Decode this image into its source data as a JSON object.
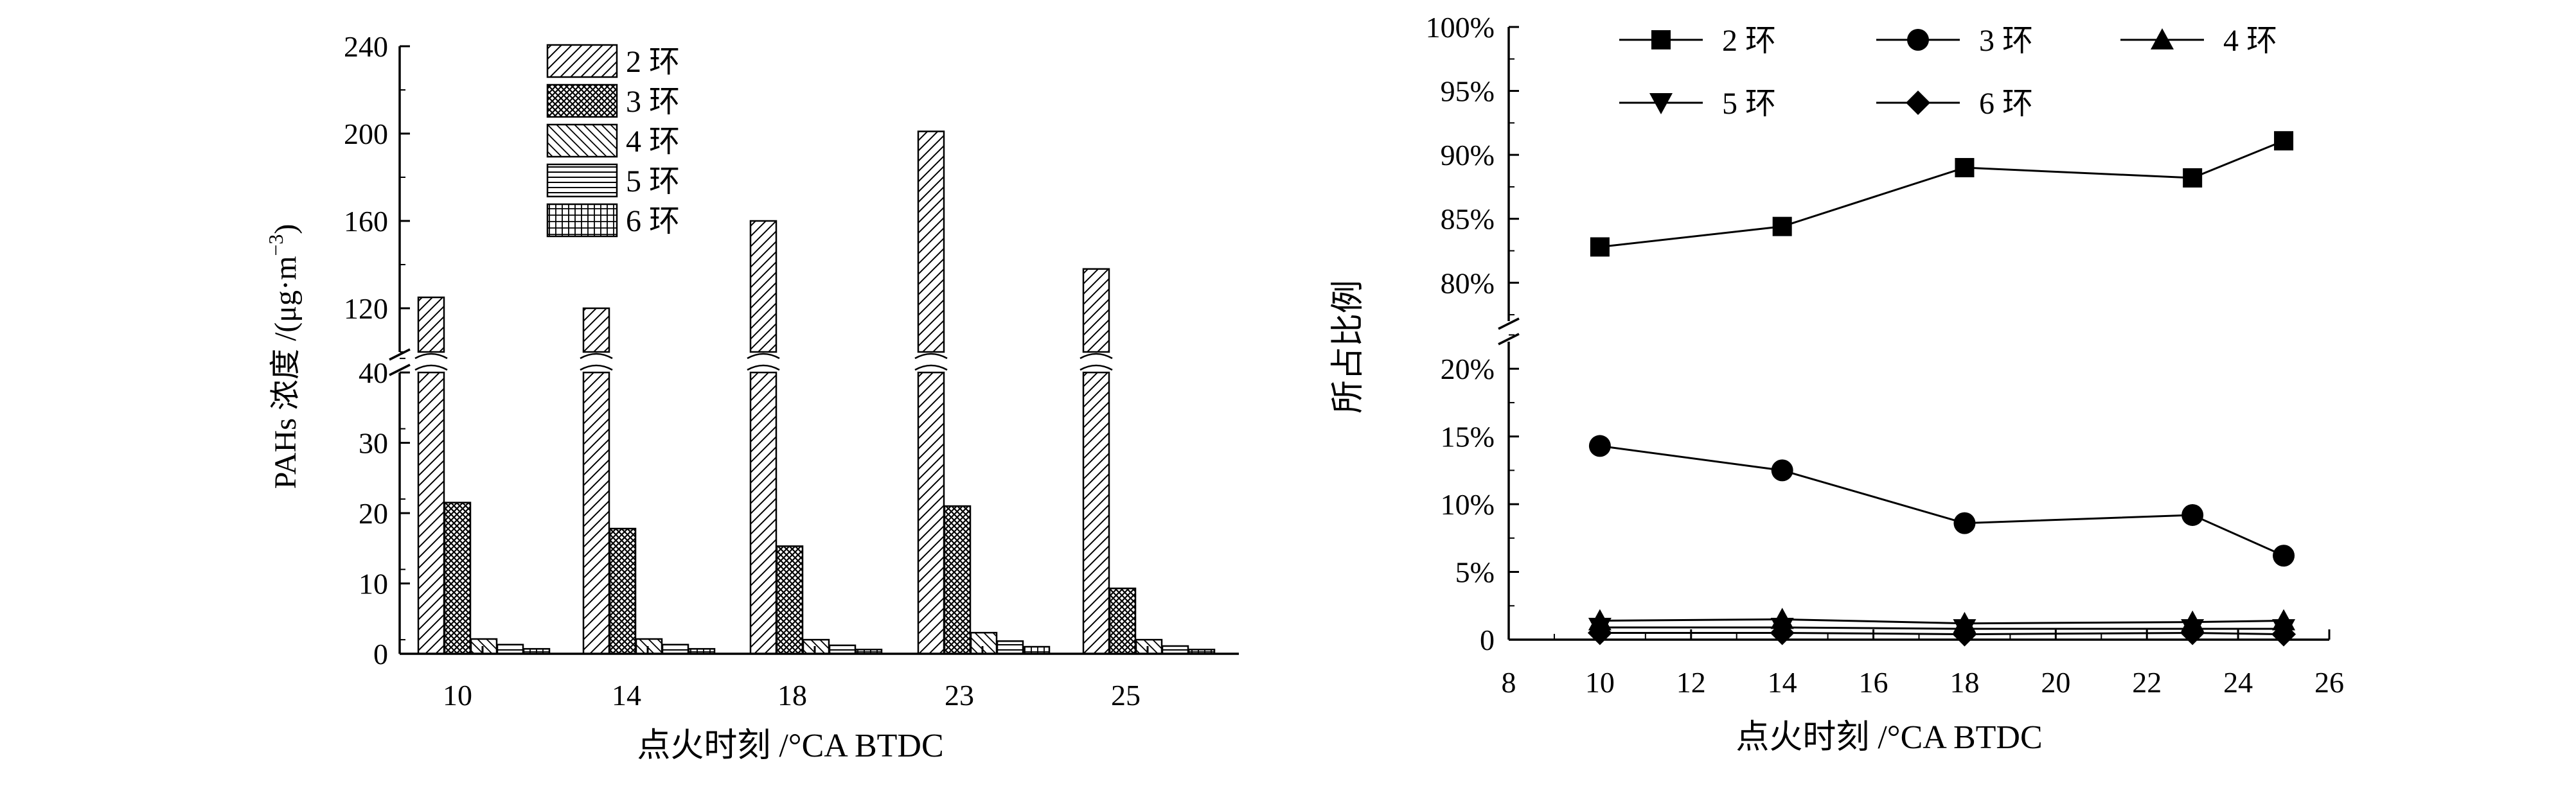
{
  "chart_data": [
    {
      "type": "bar",
      "categories": [
        "10",
        "14",
        "18",
        "23",
        "25"
      ],
      "series": [
        {
          "name": "2 环",
          "values": [
            125,
            120,
            160,
            201,
            138
          ]
        },
        {
          "name": "3 环",
          "values": [
            21.5,
            17.8,
            15.3,
            21,
            9.3
          ]
        },
        {
          "name": "4 环",
          "values": [
            2.1,
            2.1,
            2.0,
            3.0,
            2.0
          ]
        },
        {
          "name": "5 环",
          "values": [
            1.3,
            1.3,
            1.2,
            1.8,
            1.1
          ]
        },
        {
          "name": "6 环",
          "values": [
            0.7,
            0.7,
            0.6,
            1.0,
            0.6
          ]
        }
      ],
      "xlabel": "点火时刻 /°CA BTDC",
      "ylabel": "PAHs 浓度 /(μg·m",
      "ylabel_exponent": "−3",
      "ylabel_close": ")",
      "y_lower": {
        "range": [
          0,
          40
        ],
        "ticks": [
          "0",
          "10",
          "20",
          "30",
          "40"
        ]
      },
      "y_upper": {
        "range": [
          100,
          240
        ],
        "ticks": [
          "120",
          "160",
          "200",
          "240"
        ]
      },
      "broken_axis": true,
      "legend_position": "top-center",
      "patterns": [
        "diagonal",
        "crosshatch",
        "backslash",
        "horizontal",
        "grid"
      ]
    },
    {
      "type": "line",
      "x": [
        10,
        14,
        18,
        23,
        25
      ],
      "series": [
        {
          "name": "2 环",
          "marker": "square",
          "values": [
            0.828,
            0.844,
            0.89,
            0.882,
            0.911
          ]
        },
        {
          "name": "3 环",
          "marker": "circle",
          "values": [
            0.143,
            0.125,
            0.086,
            0.092,
            0.062
          ]
        },
        {
          "name": "4 环",
          "marker": "triangle-up",
          "values": [
            0.014,
            0.015,
            0.012,
            0.013,
            0.014
          ]
        },
        {
          "name": "5 环",
          "marker": "triangle-down",
          "values": [
            0.009,
            0.009,
            0.008,
            0.008,
            0.008
          ]
        },
        {
          "name": "6 环",
          "marker": "diamond",
          "values": [
            0.005,
            0.005,
            0.004,
            0.005,
            0.004
          ]
        }
      ],
      "xlabel": "点火时刻 /°CA BTDC",
      "ylabel": "所占比例",
      "xlim": [
        8,
        26
      ],
      "x_ticks": [
        "8",
        "10",
        "12",
        "14",
        "16",
        "18",
        "20",
        "22",
        "24",
        "26"
      ],
      "y_lower": {
        "range": [
          0,
          0.22
        ],
        "ticks": [
          "0",
          "5%",
          "10%",
          "15%",
          "20%"
        ]
      },
      "y_upper": {
        "range": [
          0.77,
          1.0
        ],
        "ticks": [
          "80%",
          "85%",
          "90%",
          "95%",
          "100%"
        ]
      },
      "broken_axis": true,
      "legend_position": "top"
    }
  ]
}
